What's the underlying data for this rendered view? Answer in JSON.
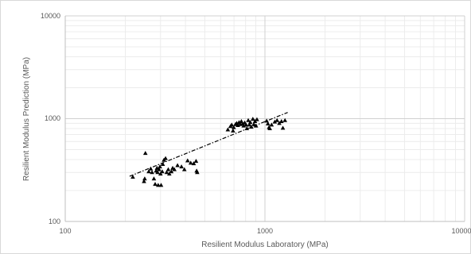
{
  "chart_data": {
    "type": "scatter",
    "xscale": "log",
    "yscale": "log",
    "xlim": [
      100,
      10000
    ],
    "ylim": [
      100,
      10000
    ],
    "xticks": [
      100,
      1000,
      10000
    ],
    "yticks": [
      100,
      1000,
      10000
    ],
    "xtick_labels": [
      "100",
      "1000",
      "10000"
    ],
    "ytick_labels": [
      "100",
      "1000",
      "10000"
    ],
    "xlabel": "Resilient  Modulus Laboratory (MPa)",
    "ylabel": "Resilient  Modulus Prediction  (MPa)",
    "grid": true,
    "legend": "none",
    "marker": "triangle",
    "marker_color": "#000000",
    "trendline": {
      "style": "dash-dot",
      "color": "#000000",
      "x": [
        210,
        1300
      ],
      "y": [
        275,
        1150
      ]
    },
    "points": [
      [
        218,
        270
      ],
      [
        248,
        245
      ],
      [
        250,
        260
      ],
      [
        252,
        460
      ],
      [
        262,
        305
      ],
      [
        268,
        325
      ],
      [
        272,
        300
      ],
      [
        278,
        260
      ],
      [
        282,
        230
      ],
      [
        285,
        310
      ],
      [
        288,
        330
      ],
      [
        290,
        300
      ],
      [
        292,
        225
      ],
      [
        295,
        320
      ],
      [
        298,
        340
      ],
      [
        300,
        290
      ],
      [
        302,
        225
      ],
      [
        306,
        305
      ],
      [
        308,
        360
      ],
      [
        312,
        395
      ],
      [
        318,
        410
      ],
      [
        322,
        300
      ],
      [
        328,
        320
      ],
      [
        332,
        290
      ],
      [
        340,
        305
      ],
      [
        345,
        330
      ],
      [
        352,
        320
      ],
      [
        365,
        350
      ],
      [
        382,
        340
      ],
      [
        395,
        320
      ],
      [
        410,
        390
      ],
      [
        425,
        370
      ],
      [
        440,
        365
      ],
      [
        452,
        385
      ],
      [
        455,
        310
      ],
      [
        458,
        300
      ],
      [
        652,
        780
      ],
      [
        672,
        840
      ],
      [
        682,
        870
      ],
      [
        692,
        760
      ],
      [
        698,
        820
      ],
      [
        712,
        880
      ],
      [
        722,
        900
      ],
      [
        732,
        860
      ],
      [
        742,
        920
      ],
      [
        752,
        880
      ],
      [
        762,
        940
      ],
      [
        772,
        890
      ],
      [
        782,
        850
      ],
      [
        792,
        910
      ],
      [
        805,
        870
      ],
      [
        812,
        800
      ],
      [
        825,
        960
      ],
      [
        835,
        870
      ],
      [
        845,
        920
      ],
      [
        855,
        830
      ],
      [
        870,
        990
      ],
      [
        880,
        880
      ],
      [
        892,
        940
      ],
      [
        902,
        850
      ],
      [
        912,
        980
      ],
      [
        1020,
        950
      ],
      [
        1035,
        890
      ],
      [
        1048,
        820
      ],
      [
        1058,
        800
      ],
      [
        1080,
        870
      ],
      [
        1120,
        930
      ],
      [
        1150,
        960
      ],
      [
        1180,
        900
      ],
      [
        1210,
        940
      ],
      [
        1230,
        810
      ],
      [
        1260,
        960
      ]
    ]
  }
}
